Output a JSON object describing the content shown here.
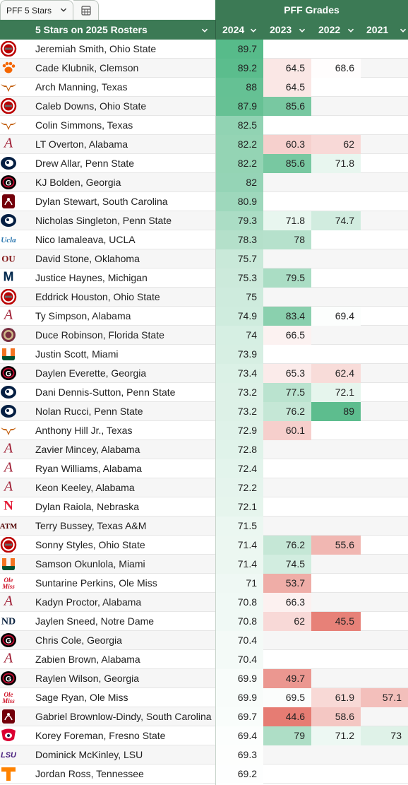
{
  "tabs": {
    "sheet_tab_label": "PFF 5 Stars",
    "grid_icon": "spreadsheet-grid-icon"
  },
  "header": {
    "group_title": "PFF Grades",
    "player_column": "5 Stars on 2025 Rosters",
    "year_columns": [
      "2024",
      "2023",
      "2022",
      "2021"
    ]
  },
  "colors": {
    "header_green": "#3c7a55",
    "high_grade": "#57bb8a",
    "low_grade": "#e67c73",
    "neutral": "#ffffff"
  },
  "grade_scale": {
    "low": 44.6,
    "mid": 69,
    "high": 89.7
  },
  "rows": [
    {
      "logo": "ohio-state-logo-icon",
      "player": "Jeremiah Smith, Ohio State",
      "g2024": "89.7",
      "g2023": "",
      "g2022": "",
      "g2021": ""
    },
    {
      "logo": "clemson-paw-logo-icon",
      "player": "Cade Klubnik, Clemson",
      "g2024": "89.2",
      "g2023": "64.5",
      "g2022": "68.6",
      "g2021": ""
    },
    {
      "logo": "texas-longhorn-logo-icon",
      "player": "Arch Manning, Texas",
      "g2024": "88",
      "g2023": "64.5",
      "g2022": "",
      "g2021": ""
    },
    {
      "logo": "ohio-state-logo-icon",
      "player": "Caleb Downs, Ohio State",
      "g2024": "87.9",
      "g2023": "85.6",
      "g2022": "",
      "g2021": ""
    },
    {
      "logo": "texas-longhorn-logo-icon",
      "player": "Colin Simmons, Texas",
      "g2024": "82.5",
      "g2023": "",
      "g2022": "",
      "g2021": ""
    },
    {
      "logo": "alabama-a-logo-icon",
      "player": "LT Overton, Alabama",
      "g2024": "82.2",
      "g2023": "60.3",
      "g2022": "62",
      "g2021": ""
    },
    {
      "logo": "penn-state-logo-icon",
      "player": "Drew Allar, Penn State",
      "g2024": "82.2",
      "g2023": "85.6",
      "g2022": "71.8",
      "g2021": ""
    },
    {
      "logo": "georgia-g-logo-icon",
      "player": "KJ Bolden, Georgia",
      "g2024": "82",
      "g2023": "",
      "g2022": "",
      "g2021": ""
    },
    {
      "logo": "south-carolina-logo-icon",
      "player": "Dylan Stewart, South Carolina",
      "g2024": "80.9",
      "g2023": "",
      "g2022": "",
      "g2021": ""
    },
    {
      "logo": "penn-state-logo-icon",
      "player": "Nicholas Singleton, Penn State",
      "g2024": "79.3",
      "g2023": "71.8",
      "g2022": "74.7",
      "g2021": ""
    },
    {
      "logo": "ucla-logo-icon",
      "player": "Nico Iamaleava, UCLA",
      "g2024": "78.3",
      "g2023": "78",
      "g2022": "",
      "g2021": ""
    },
    {
      "logo": "oklahoma-ou-logo-icon",
      "player": "David Stone, Oklahoma",
      "g2024": "75.7",
      "g2023": "",
      "g2022": "",
      "g2021": ""
    },
    {
      "logo": "michigan-m-logo-icon",
      "player": "Justice Haynes, Michigan",
      "g2024": "75.3",
      "g2023": "79.5",
      "g2022": "",
      "g2021": ""
    },
    {
      "logo": "ohio-state-logo-icon",
      "player": "Eddrick Houston, Ohio State",
      "g2024": "75",
      "g2023": "",
      "g2022": "",
      "g2021": ""
    },
    {
      "logo": "alabama-a-logo-icon",
      "player": "Ty Simpson, Alabama",
      "g2024": "74.9",
      "g2023": "83.4",
      "g2022": "69.4",
      "g2021": ""
    },
    {
      "logo": "florida-state-logo-icon",
      "player": "Duce Robinson, Florida State",
      "g2024": "74",
      "g2023": "66.5",
      "g2022": "",
      "g2021": ""
    },
    {
      "logo": "miami-u-logo-icon",
      "player": "Justin Scott, Miami",
      "g2024": "73.9",
      "g2023": "",
      "g2022": "",
      "g2021": ""
    },
    {
      "logo": "georgia-g-logo-icon",
      "player": "Daylen Everette, Georgia",
      "g2024": "73.4",
      "g2023": "65.3",
      "g2022": "62.4",
      "g2021": ""
    },
    {
      "logo": "penn-state-logo-icon",
      "player": "Dani Dennis-Sutton, Penn State",
      "g2024": "73.2",
      "g2023": "77.5",
      "g2022": "72.1",
      "g2021": ""
    },
    {
      "logo": "penn-state-logo-icon",
      "player": "Nolan Rucci, Penn State",
      "g2024": "73.2",
      "g2023": "76.2",
      "g2022": "89",
      "g2021": ""
    },
    {
      "logo": "texas-longhorn-logo-icon",
      "player": "Anthony Hill Jr., Texas",
      "g2024": "72.9",
      "g2023": "60.1",
      "g2022": "",
      "g2021": ""
    },
    {
      "logo": "alabama-a-logo-icon",
      "player": "Zavier Mincey, Alabama",
      "g2024": "72.8",
      "g2023": "",
      "g2022": "",
      "g2021": ""
    },
    {
      "logo": "alabama-a-logo-icon",
      "player": "Ryan Williams, Alabama",
      "g2024": "72.4",
      "g2023": "",
      "g2022": "",
      "g2021": ""
    },
    {
      "logo": "alabama-a-logo-icon",
      "player": "Keon Keeley, Alabama",
      "g2024": "72.2",
      "g2023": "",
      "g2022": "",
      "g2021": ""
    },
    {
      "logo": "nebraska-n-logo-icon",
      "player": "Dylan Raiola, Nebraska",
      "g2024": "72.1",
      "g2023": "",
      "g2022": "",
      "g2021": ""
    },
    {
      "logo": "texas-am-logo-icon",
      "player": "Terry Bussey, Texas A&M",
      "g2024": "71.5",
      "g2023": "",
      "g2022": "",
      "g2021": ""
    },
    {
      "logo": "ohio-state-logo-icon",
      "player": "Sonny Styles, Ohio State",
      "g2024": "71.4",
      "g2023": "76.2",
      "g2022": "55.6",
      "g2021": ""
    },
    {
      "logo": "miami-u-logo-icon",
      "player": "Samson Okunlola, Miami",
      "g2024": "71.4",
      "g2023": "74.5",
      "g2022": "",
      "g2021": ""
    },
    {
      "logo": "ole-miss-logo-icon",
      "player": "Suntarine Perkins, Ole Miss",
      "g2024": "71",
      "g2023": "53.7",
      "g2022": "",
      "g2021": ""
    },
    {
      "logo": "alabama-a-logo-icon",
      "player": "Kadyn Proctor, Alabama",
      "g2024": "70.8",
      "g2023": "66.3",
      "g2022": "",
      "g2021": ""
    },
    {
      "logo": "notre-dame-logo-icon",
      "player": "Jaylen Sneed, Notre Dame",
      "g2024": "70.8",
      "g2023": "62",
      "g2022": "45.5",
      "g2021": ""
    },
    {
      "logo": "georgia-g-logo-icon",
      "player": "Chris Cole, Georgia",
      "g2024": "70.4",
      "g2023": "",
      "g2022": "",
      "g2021": ""
    },
    {
      "logo": "alabama-a-logo-icon",
      "player": "Zabien Brown, Alabama",
      "g2024": "70.4",
      "g2023": "",
      "g2022": "",
      "g2021": ""
    },
    {
      "logo": "georgia-g-logo-icon",
      "player": "Raylen Wilson, Georgia",
      "g2024": "69.9",
      "g2023": "49.7",
      "g2022": "",
      "g2021": ""
    },
    {
      "logo": "ole-miss-logo-icon",
      "player": "Sage Ryan, Ole Miss",
      "g2024": "69.9",
      "g2023": "69.5",
      "g2022": "61.9",
      "g2021": "57.1"
    },
    {
      "logo": "south-carolina-logo-icon",
      "player": "Gabriel Brownlow-Dindy, South Carolina",
      "g2024": "69.7",
      "g2023": "44.6",
      "g2022": "58.6",
      "g2021": ""
    },
    {
      "logo": "fresno-state-logo-icon",
      "player": "Korey Foreman, Fresno State",
      "g2024": "69.4",
      "g2023": "79",
      "g2022": "71.2",
      "g2021": "73"
    },
    {
      "logo": "lsu-logo-icon",
      "player": "Dominick McKinley, LSU",
      "g2024": "69.3",
      "g2023": "",
      "g2022": "",
      "g2021": ""
    },
    {
      "logo": "tennessee-t-logo-icon",
      "player": "Jordan Ross, Tennessee",
      "g2024": "69.2",
      "g2023": "",
      "g2022": "",
      "g2021": ""
    }
  ]
}
